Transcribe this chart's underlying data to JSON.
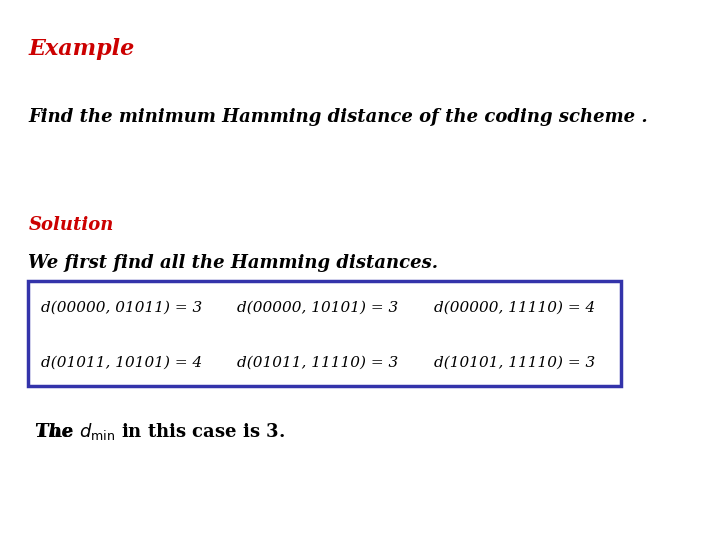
{
  "background_color": "#ffffff",
  "example_text": "Example",
  "example_color": "#cc0000",
  "example_fontsize": 16,
  "example_style": "italic",
  "example_weight": "bold",
  "find_text": "Find the minimum Hamming distance of the coding scheme .",
  "find_fontsize": 13,
  "find_style": "italic",
  "find_weight": "bold",
  "solution_text": "Solution",
  "solution_color": "#cc0000",
  "solution_fontsize": 13,
  "solution_style": "italic",
  "solution_weight": "bold",
  "we_first_text": "We first find all the Hamming distances.",
  "we_first_fontsize": 13,
  "we_first_style": "italic",
  "we_first_weight": "bold",
  "table_row1": [
    "d(00000, 01011) = 3",
    "d(00000, 10101) = 3",
    "d(00000, 11110) = 4"
  ],
  "table_row2": [
    "d(01011, 10101) = 4",
    "d(01011, 11110) = 3",
    "d(10101, 11110) = 3"
  ],
  "table_fontsize": 11,
  "table_border_color": "#3333aa",
  "dmin_prefix": "The d",
  "dmin_sub": "min",
  "dmin_suffix": " in this case is 3.",
  "dmin_fontsize": 13,
  "dmin_style": "italic",
  "dmin_weight": "bold"
}
